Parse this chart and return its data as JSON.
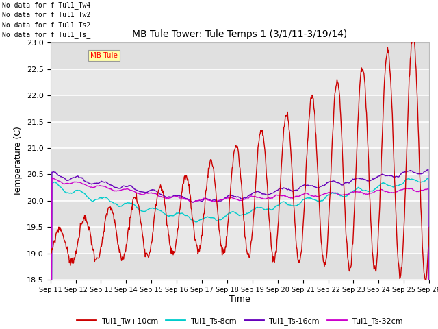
{
  "title": "MB Tule Tower: Tule Temps 1 (3/1/11-3/19/14)",
  "xlabel": "Time",
  "ylabel": "Temperature (C)",
  "ylim": [
    18.5,
    23.0
  ],
  "bg_color": "#e8e8e8",
  "plot_bg_light": "#f0f0f0",
  "legend_labels": [
    "Tul1_Tw+10cm",
    "Tul1_Ts-8cm",
    "Tul1_Ts-16cm",
    "Tul1_Ts-32cm"
  ],
  "legend_colors": [
    "#cc0000",
    "#00cccc",
    "#6600bb",
    "#cc00cc"
  ],
  "no_data_lines": [
    "No data for f Tul1_Tw4",
    "No data for f Tul1_Tw2",
    "No data for f Tul1_Ts2",
    "No data for f Tul1_Ts_"
  ],
  "xtick_labels": [
    "Sep 11",
    "Sep 12",
    "Sep 13",
    "Sep 14",
    "Sep 15",
    "Sep 16",
    "Sep 17",
    "Sep 18",
    "Sep 19",
    "Sep 20",
    "Sep 21",
    "Sep 22",
    "Sep 23",
    "Sep 24",
    "Sep 25",
    "Sep 26"
  ],
  "ytick_values": [
    18.5,
    19.0,
    19.5,
    20.0,
    20.5,
    21.0,
    21.5,
    22.0,
    22.5,
    23.0
  ],
  "annotation_text": "MB Tule",
  "annotation_bg": "#ffffaa"
}
